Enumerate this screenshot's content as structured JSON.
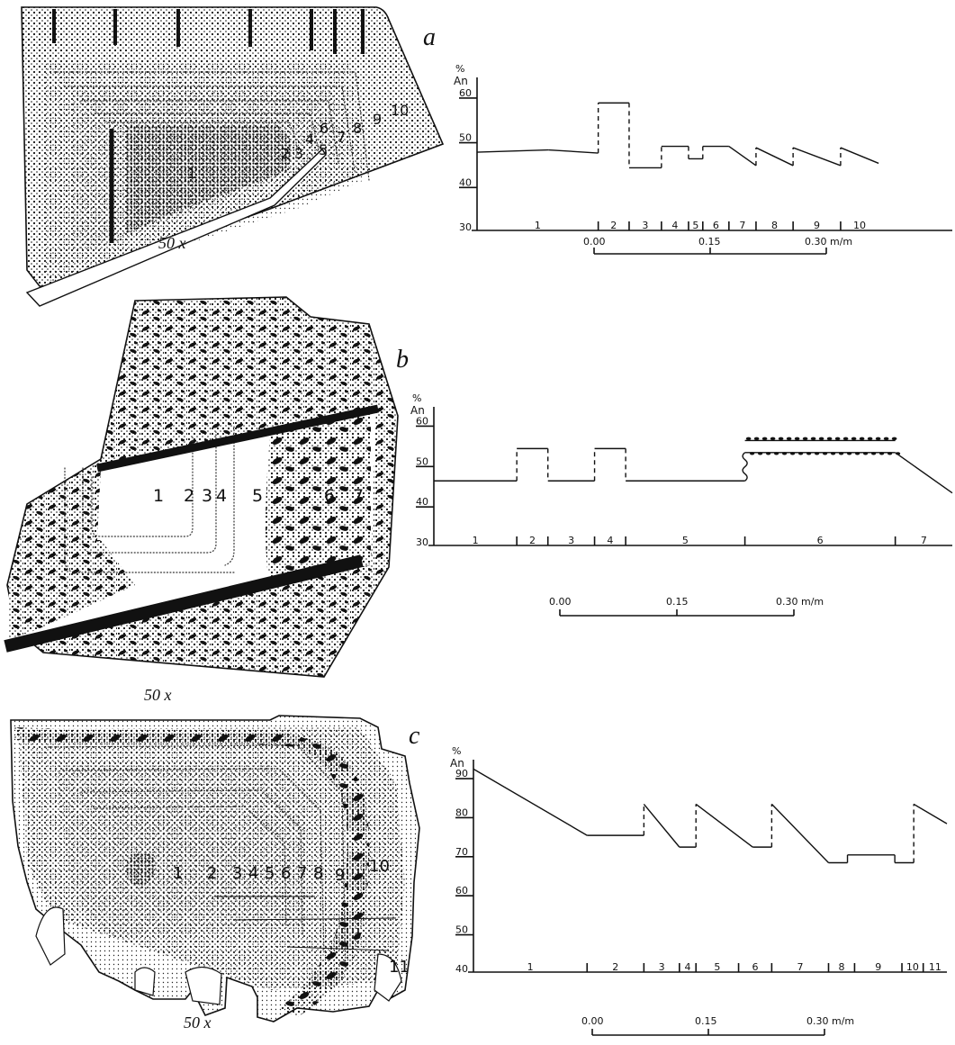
{
  "figure": {
    "panels": [
      {
        "letter": "a",
        "magnification": "50 x",
        "zone_labels": [
          "1",
          "2",
          "3",
          "4",
          "5",
          "6",
          "7",
          "8",
          "9",
          "10"
        ],
        "axis_unit": "%",
        "axis_name": "An",
        "y_ticks": [
          "60",
          "50",
          "40",
          "30"
        ],
        "scale_labels": [
          "0.00",
          "0.15",
          "0.30 m/m"
        ]
      },
      {
        "letter": "b",
        "magnification": "50 x",
        "zone_labels": [
          "1",
          "2",
          "3",
          "4",
          "5",
          "6",
          "7"
        ],
        "axis_unit": "%",
        "axis_name": "An",
        "y_ticks": [
          "60",
          "50",
          "40",
          "30"
        ],
        "scale_labels": [
          "0.00",
          "0.15",
          "0.30 m/m"
        ]
      },
      {
        "letter": "c",
        "magnification": "50 x",
        "zone_labels": [
          "1",
          "2",
          "3",
          "4",
          "5",
          "6",
          "7",
          "8",
          "9",
          "10",
          "11"
        ],
        "axis_unit": "%",
        "axis_name": "An",
        "y_ticks": [
          "90",
          "80",
          "70",
          "60",
          "50",
          "40"
        ],
        "scale_labels": [
          "0.00",
          "0.15",
          "0.30 m/m"
        ]
      }
    ]
  },
  "chart_data": [
    {
      "type": "line",
      "title": "a",
      "ylabel": "% An",
      "ylim": [
        30,
        63
      ],
      "x_range": [
        0,
        10
      ],
      "zones": [
        "1",
        "2",
        "3",
        "4",
        "5",
        "6",
        "7",
        "8",
        "9",
        "10"
      ],
      "zone_bounds": [
        0,
        2.55,
        3.2,
        3.88,
        4.45,
        4.75,
        5.3,
        5.87,
        6.65,
        7.65,
        8.45
      ],
      "points": [
        [
          0,
          47.5
        ],
        [
          1.5,
          48
        ],
        [
          2.55,
          47.3
        ],
        [
          2.55,
          58.5
        ],
        [
          3.2,
          58.5
        ],
        [
          3.2,
          44
        ],
        [
          3.88,
          44
        ],
        [
          3.88,
          48.8
        ],
        [
          4.45,
          48.8
        ],
        [
          4.45,
          46
        ],
        [
          4.75,
          46
        ],
        [
          4.75,
          48.8
        ],
        [
          5.3,
          48.8
        ],
        [
          5.87,
          44.5
        ],
        [
          5.87,
          48.5
        ],
        [
          6.65,
          44.5
        ],
        [
          6.65,
          48.5
        ],
        [
          7.65,
          44.5
        ],
        [
          7.65,
          48.5
        ],
        [
          8.45,
          45
        ]
      ],
      "vertical_jumps": [
        2.55,
        3.2,
        3.88,
        4.45,
        4.75,
        5.87,
        6.65,
        7.65
      ]
    },
    {
      "type": "line",
      "title": "b",
      "ylabel": "% An",
      "ylim": [
        30,
        63
      ],
      "x_range": [
        0,
        10
      ],
      "zones": [
        "1",
        "2",
        "3",
        "4",
        "5",
        "6",
        "7"
      ],
      "zone_bounds": [
        0,
        1.6,
        2.2,
        3.1,
        3.7,
        6.0,
        8.9,
        10.0
      ],
      "points": [
        [
          0,
          46
        ],
        [
          1.6,
          46
        ],
        [
          1.6,
          54
        ],
        [
          2.2,
          54
        ],
        [
          2.2,
          46
        ],
        [
          3.1,
          46
        ],
        [
          3.1,
          54
        ],
        [
          3.7,
          54
        ],
        [
          3.7,
          46
        ],
        [
          6.0,
          46
        ],
        [
          6.0,
          53
        ],
        [
          8.9,
          53
        ],
        [
          10.0,
          43
        ]
      ],
      "vertical_jumps": [
        1.6,
        2.2,
        3.1,
        3.7,
        6.0
      ],
      "oscillatory_band": {
        "from": 6.0,
        "to": 8.9,
        "range": [
          53,
          56
        ]
      }
    },
    {
      "type": "line",
      "title": "c",
      "ylabel": "% An",
      "ylim": [
        40,
        93
      ],
      "x_range": [
        0,
        10
      ],
      "zones": [
        "1",
        "2",
        "3",
        "4",
        "5",
        "6",
        "7",
        "8",
        "9",
        "10",
        "11"
      ],
      "zone_bounds": [
        0,
        2.4,
        3.6,
        4.35,
        4.7,
        5.6,
        6.3,
        7.5,
        8.05,
        9.05,
        9.5,
        10.0
      ],
      "points": [
        [
          0,
          92
        ],
        [
          2.4,
          75
        ],
        [
          3.6,
          75
        ],
        [
          3.6,
          83
        ],
        [
          4.35,
          72
        ],
        [
          4.7,
          72
        ],
        [
          4.7,
          83
        ],
        [
          5.9,
          72
        ],
        [
          6.3,
          72
        ],
        [
          6.3,
          83
        ],
        [
          7.5,
          68
        ],
        [
          7.9,
          68
        ],
        [
          7.9,
          70
        ],
        [
          8.9,
          70
        ],
        [
          8.9,
          68
        ],
        [
          9.3,
          68
        ],
        [
          9.3,
          83
        ],
        [
          10.0,
          78
        ]
      ],
      "vertical_jumps": [
        3.6,
        4.7,
        6.3,
        9.3
      ]
    }
  ]
}
